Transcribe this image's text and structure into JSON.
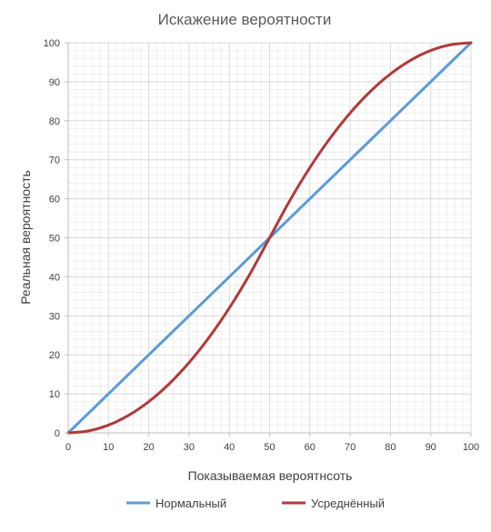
{
  "chart_data": {
    "type": "line",
    "title": "Искажение вероятности",
    "xlabel": "Показываемая вероятнсоть",
    "ylabel": "Реальная вероятность",
    "xlim": [
      0,
      100
    ],
    "ylim": [
      0,
      100
    ],
    "x_ticks": [
      0,
      10,
      20,
      30,
      40,
      50,
      60,
      70,
      80,
      90,
      100
    ],
    "y_ticks": [
      0,
      10,
      20,
      30,
      40,
      50,
      60,
      70,
      80,
      90,
      100
    ],
    "x_tick_labels": [
      "0",
      "10",
      "20",
      "30",
      "40",
      "50",
      "60",
      "70",
      "80",
      "90",
      "100"
    ],
    "y_tick_labels": [
      "0",
      "10",
      "20",
      "30",
      "40",
      "50",
      "60",
      "70",
      "80",
      "90",
      "100"
    ],
    "grid": true,
    "legend_position": "bottom",
    "series": [
      {
        "name": "Нормальный",
        "color": "#5b9bd5",
        "x": [
          0,
          10,
          20,
          30,
          40,
          50,
          60,
          70,
          80,
          90,
          100
        ],
        "y": [
          0,
          10,
          20,
          30,
          40,
          50,
          60,
          70,
          80,
          90,
          100
        ]
      },
      {
        "name": "Усреднённый",
        "color": "#b03a3a",
        "x": [
          0,
          5,
          10,
          15,
          20,
          25,
          30,
          35,
          40,
          45,
          50,
          55,
          60,
          65,
          70,
          75,
          80,
          85,
          90,
          95,
          100
        ],
        "y": [
          0,
          0.5,
          2,
          4.5,
          8,
          12.5,
          18,
          24.5,
          32,
          40.5,
          50,
          59.5,
          68,
          75.5,
          82,
          87.5,
          92,
          95.5,
          98,
          99.5,
          100
        ]
      }
    ]
  }
}
